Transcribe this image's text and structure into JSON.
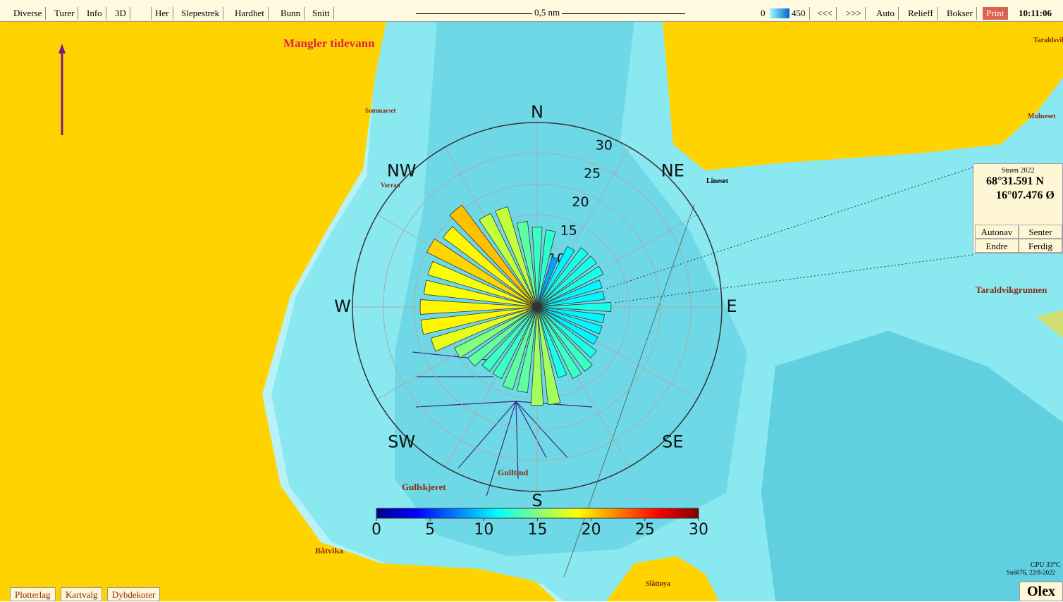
{
  "toolbar": {
    "left": [
      "Diverse",
      "Turer",
      "Info",
      "3D",
      "Her",
      "Slepestrek",
      "Hardhet",
      "Bunn",
      "Snitt"
    ],
    "scale": "0,5 nm",
    "depth_min": "0",
    "depth_max": "450",
    "right": [
      "<<<",
      ">>>",
      "Auto",
      "Relieff",
      "Bokser",
      "Print"
    ],
    "time": "10:11:06"
  },
  "map": {
    "warning": "Mangler tidevann",
    "places": [
      "Sommarset",
      "Vorran",
      "Lineset",
      "Taraldvikgrunnen",
      "Gullskjeret",
      "Gulltind",
      "Båtvika",
      "Slåttøya",
      "Mulneset",
      "Taraldsvik"
    ]
  },
  "panel": {
    "title": "Strøm 2022",
    "lat": "68°31.591 N",
    "lon": "16°07.476 Ø",
    "buttons": [
      "Autonav",
      "Senter",
      "Endre",
      "Ferdig"
    ]
  },
  "bottom": {
    "tabs": [
      "Plotterlag",
      "Kartvalg",
      "Dybdekoter"
    ],
    "cpu": "CPU 33°C",
    "serial": "Sn6076, 22/8-2022",
    "brand": "Olex"
  },
  "chart_data": {
    "type": "rose",
    "directions": [
      "N",
      "NE",
      "E",
      "SE",
      "S",
      "SW",
      "W",
      "NW"
    ],
    "angles": [
      0,
      10,
      20,
      30,
      40,
      50,
      60,
      70,
      80,
      90,
      100,
      110,
      120,
      130,
      140,
      150,
      160,
      170,
      180,
      190,
      200,
      210,
      220,
      230,
      240,
      250,
      260,
      270,
      280,
      290,
      300,
      310,
      320,
      330,
      340,
      350
    ],
    "values": [
      13,
      12.6,
      8.5,
      11,
      12,
      12,
      12,
      11,
      11,
      12,
      11,
      11,
      11,
      12,
      13,
      13,
      12,
      16,
      16,
      14,
      14,
      13,
      13,
      14,
      15,
      18,
      19,
      19,
      18.5,
      18.5,
      20,
      19,
      20.6,
      17,
      17,
      14
    ],
    "rlim": [
      0,
      30
    ],
    "rticks": [
      10,
      15,
      20,
      25,
      30
    ],
    "clim": [
      0,
      30
    ],
    "cticks": [
      0,
      5,
      10,
      15,
      20,
      25,
      30
    ],
    "colormap": [
      "#00008f",
      "#0000ff",
      "#0080ff",
      "#00ffff",
      "#80ff80",
      "#ffff00",
      "#ff8000",
      "#ff0000",
      "#800000"
    ]
  }
}
